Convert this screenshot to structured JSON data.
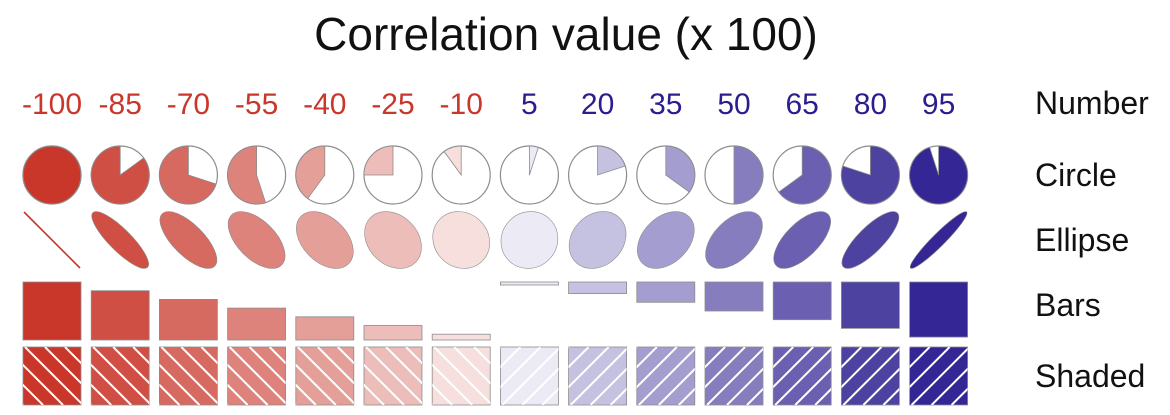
{
  "chart_data": {
    "type": "table",
    "title": "Correlation value (x 100)",
    "values": [
      -100,
      -85,
      -70,
      -55,
      -40,
      -25,
      -10,
      5,
      20,
      35,
      50,
      65,
      80,
      95
    ],
    "row_labels": [
      "Number",
      "Circle",
      "Ellipse",
      "Bars",
      "Shaded"
    ],
    "colors": {
      "negative_full": "#c9372b",
      "positive_full": "#2c1d8f",
      "neutral": "#ffffff",
      "outline": "#8c8c8c"
    }
  }
}
